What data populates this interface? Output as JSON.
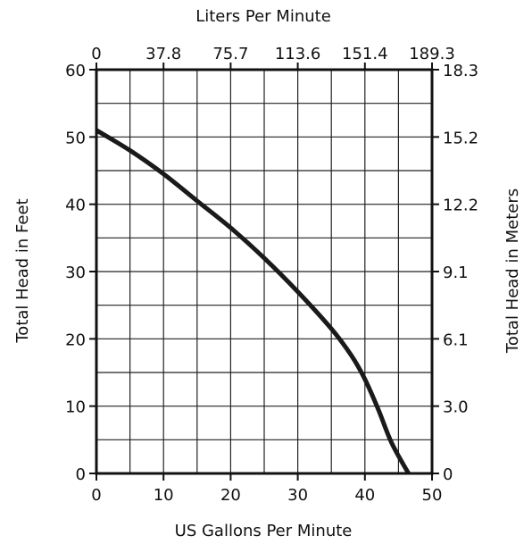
{
  "chart_data": {
    "type": "line",
    "xlabel": "US Gallons Per Minute",
    "ylabel": "Total Head in Feet",
    "x2label": "Liters Per Minute",
    "y2label": "Total Head in Meters",
    "xlim": [
      0,
      50
    ],
    "ylim": [
      0,
      60
    ],
    "x_ticks": [
      "0",
      "10",
      "20",
      "30",
      "40",
      "50"
    ],
    "y_ticks": [
      "0",
      "10",
      "20",
      "30",
      "40",
      "50",
      "60"
    ],
    "x2_ticks": [
      "0",
      "37.8",
      "75.7",
      "113.6",
      "151.4",
      "189.3"
    ],
    "y2_ticks": [
      "0",
      "3.0",
      "6.1",
      "9.1",
      "12.2",
      "15.2",
      "18.3"
    ],
    "grid": true,
    "grid_x_step": 5,
    "grid_y_step": 5,
    "series": [
      {
        "x": [
          0,
          5,
          10,
          15,
          20,
          25,
          30,
          35,
          38,
          40,
          42,
          44,
          46.5
        ],
        "y": [
          51,
          48,
          44.5,
          40.5,
          36.5,
          32,
          27,
          21.5,
          17.5,
          14,
          9.5,
          4.5,
          0
        ]
      }
    ]
  }
}
